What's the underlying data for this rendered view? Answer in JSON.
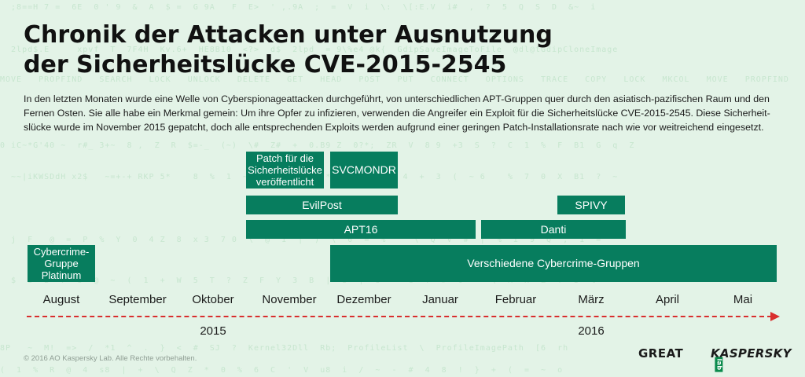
{
  "title": {
    "line1": "Chronik der Attacken unter Ausnutzung",
    "line2": "der Sicherheitslücke CVE-2015-2545"
  },
  "intro": "In den letzten Monaten wurde eine Welle von Cyberspionageattacken durchgeführt, von unterschiedlichen APT-Gruppen quer durch den asiatisch-pazifischen Raum und den Fernen Osten. Sie alle habe ein Merkmal gemein: Um ihre Opfer zu infizieren, verwenden die Angreifer ein Exploit für die Sicherheitslücke CVE-2015-2545. Diese Sicherheit-slücke wurde im November 2015 gepatcht, doch alle entsprechenden Exploits werden aufgrund einer geringen Patch-Installationsrate nach wie vor weitreichend eingesetzt.",
  "bars": {
    "patch": [
      "Patch für die",
      "Sicherheitslücke",
      "veröffentlicht"
    ],
    "svcmondr": "SVCMONDR",
    "evilpost": "EvilPost",
    "spivy": "SPIVY",
    "apt16": "APT16",
    "danti": "Danti",
    "platinum": [
      "Cybercrime-",
      "Gruppe",
      "Platinum"
    ],
    "cybercrime": "Verschiedene Cybercrime-Gruppen"
  },
  "months": [
    "August",
    "September",
    "Oktober",
    "November",
    "Dezember",
    "Januar",
    "Februar",
    "März",
    "April",
    "Mai"
  ],
  "years": [
    "2015",
    "2016"
  ],
  "colors": {
    "background": "#e3f3e7",
    "bar": "#077d5e",
    "timeline": "#d92e2e",
    "logo_lab": "#0a8a4c"
  },
  "footer": {
    "copyright": "© 2016 AO Kaspersky Lab. Alle Rechte vorbehalten.",
    "logo_great": "GREAT",
    "logo_kaspersky": "KASPERSKY",
    "logo_lab": "lab"
  }
}
